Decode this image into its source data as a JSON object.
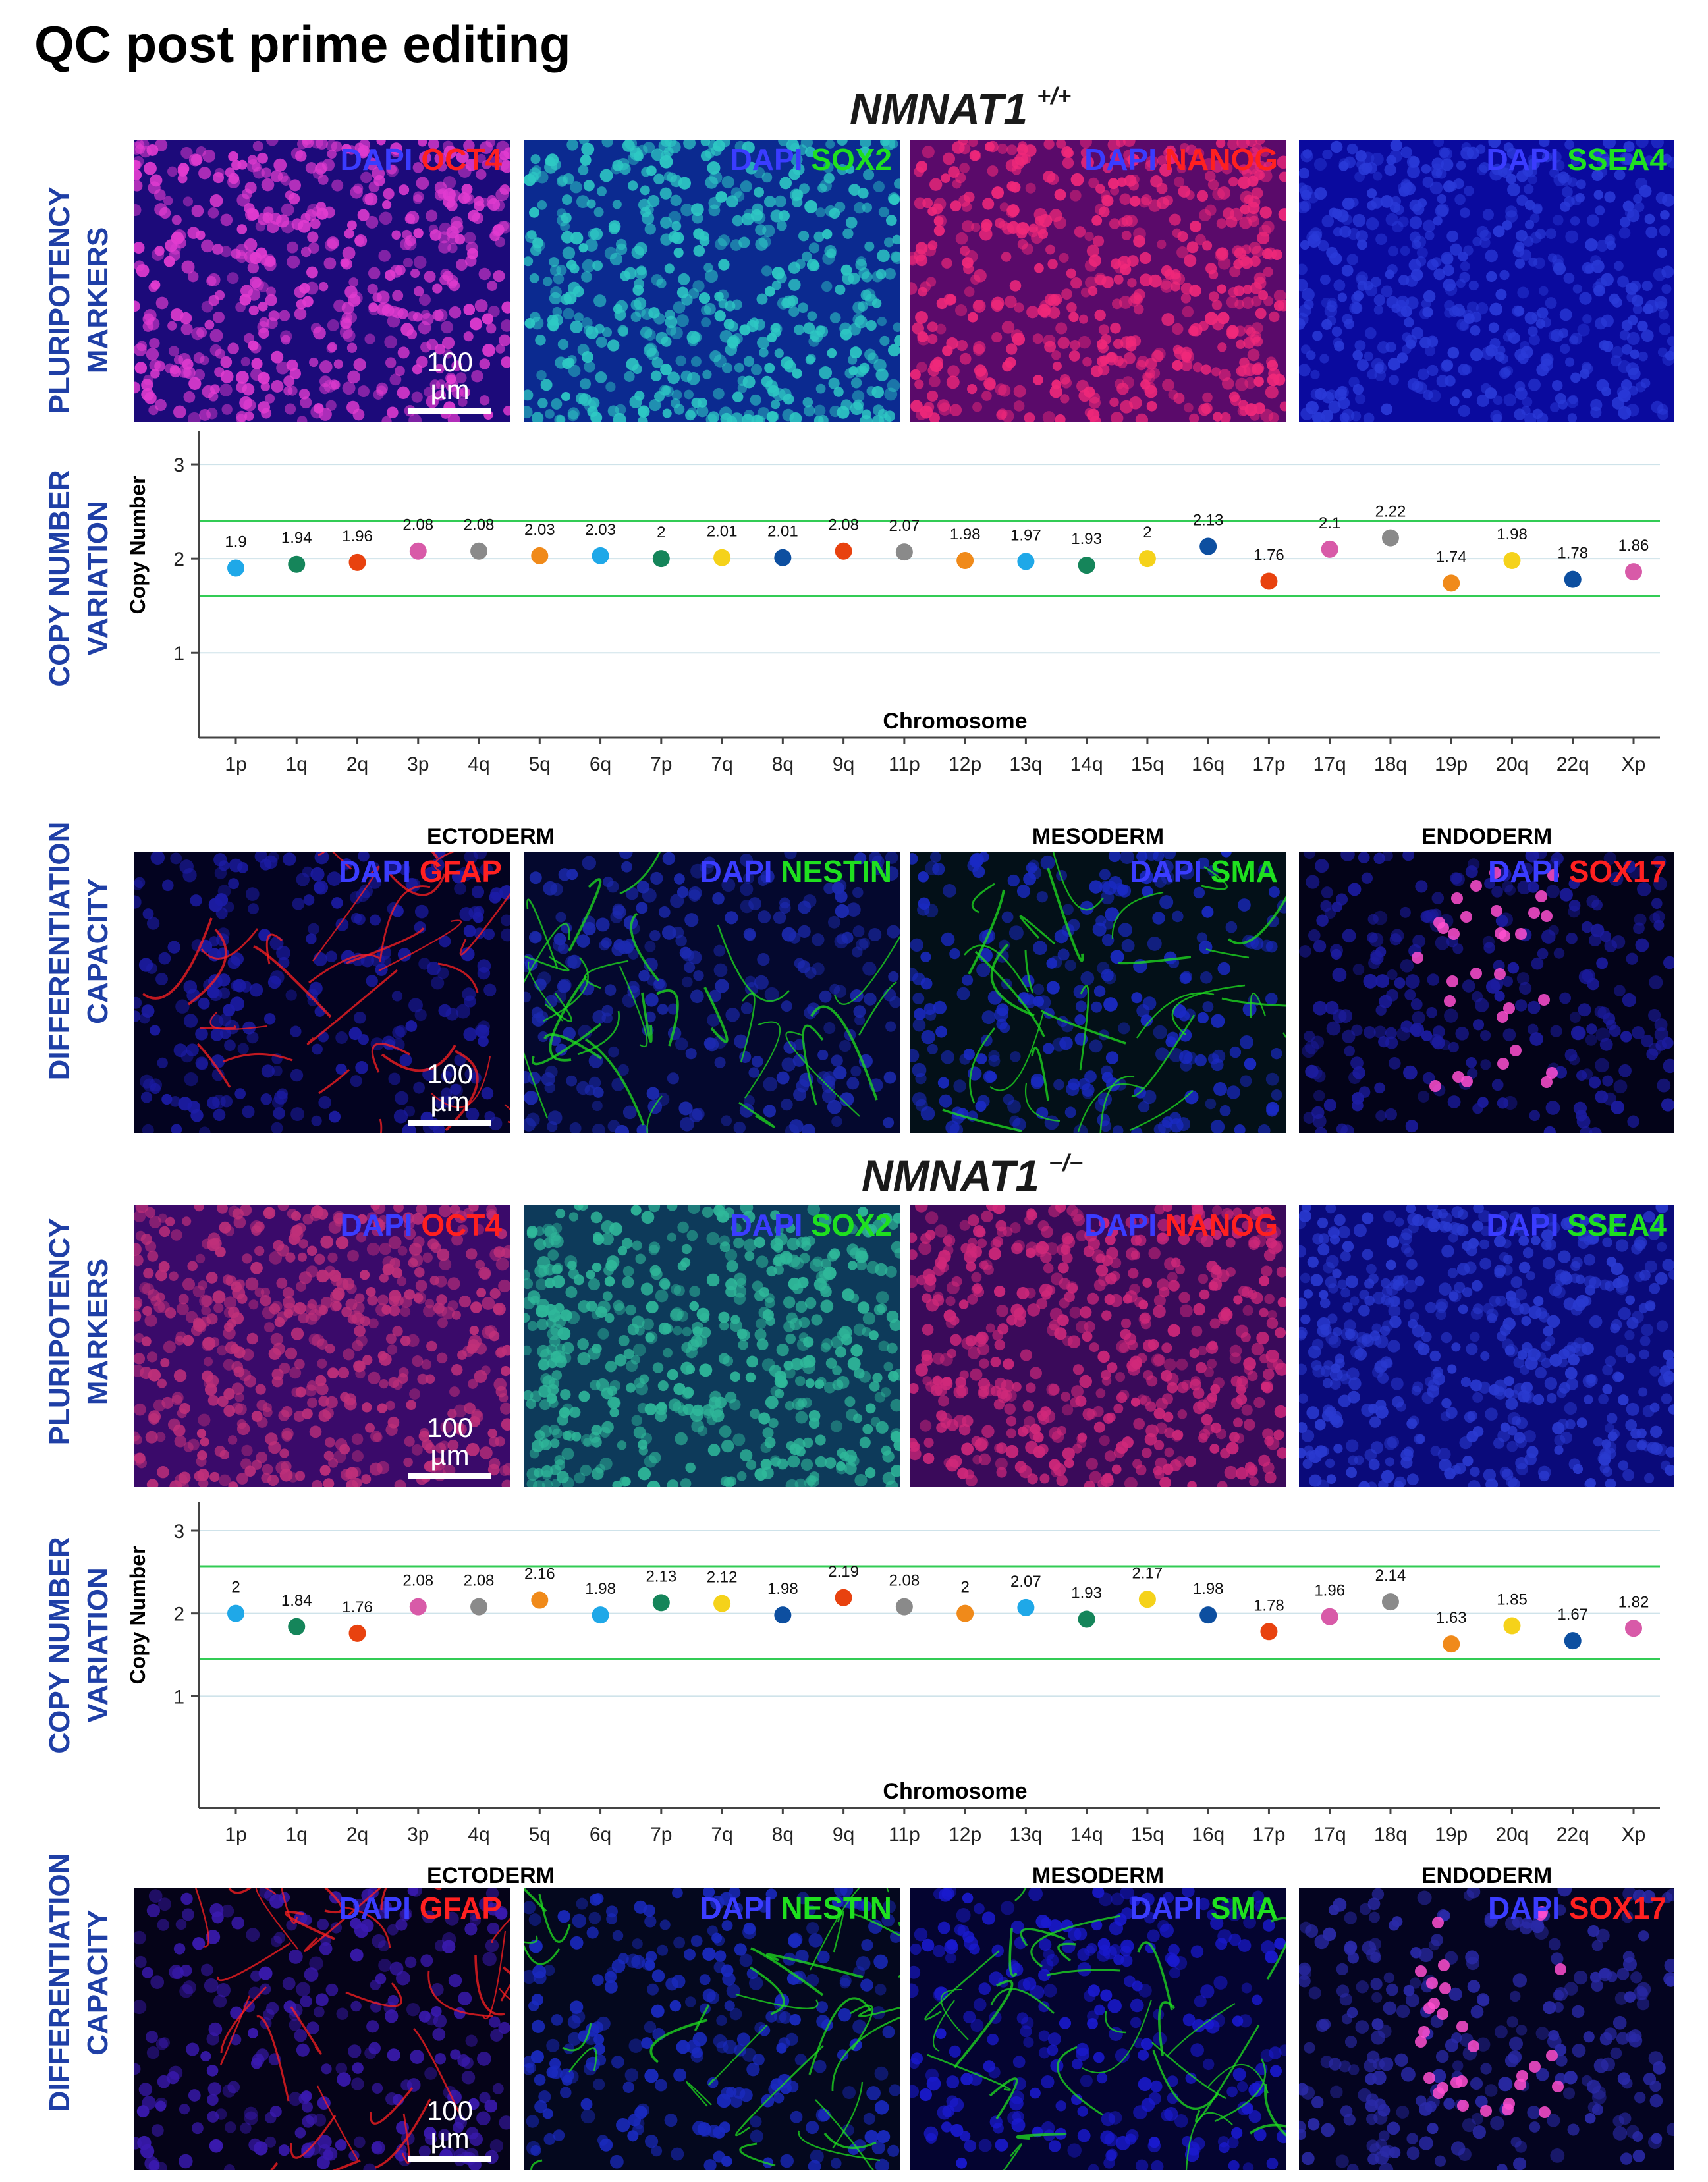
{
  "title": "QC post prime editing",
  "sections": [
    {
      "genotype": "NMNAT1",
      "genotype_sup": "+/+",
      "pluripotency": {
        "row_label": [
          "PLURIPOTENCY",
          "MARKERS"
        ],
        "panels": [
          {
            "dapi": "DAPI",
            "marker": "OCT4",
            "marker_color": "#ff2020",
            "bg": "#1c0a7a",
            "nuclei": "#e23bd0",
            "scale": "100 µm"
          },
          {
            "dapi": "DAPI",
            "marker": "SOX2",
            "marker_color": "#1fe01f",
            "bg": "#0b2a90",
            "nuclei": "#2ec9c4",
            "scale": ""
          },
          {
            "dapi": "DAPI",
            "marker": "NANOG",
            "marker_color": "#ff2020",
            "bg": "#5a0a6a",
            "nuclei": "#f0287a",
            "scale": ""
          },
          {
            "dapi": "DAPI",
            "marker": "SSEA4",
            "marker_color": "#1fe01f",
            "bg": "#0a0a9e",
            "nuclei": "#2a3ad8",
            "scale": ""
          }
        ]
      },
      "cnv": {
        "row_label": [
          "COPY NUMBER",
          "VARIATION"
        ],
        "chart_data": {
          "type": "scatter",
          "categories": [
            "1p",
            "1q",
            "2q",
            "3p",
            "4q",
            "5q",
            "6q",
            "7p",
            "7q",
            "8q",
            "9q",
            "11p",
            "12p",
            "13q",
            "14q",
            "15q",
            "16q",
            "17p",
            "17q",
            "18q",
            "19p",
            "20q",
            "22q",
            "Xp"
          ],
          "values": [
            1.9,
            1.94,
            1.96,
            2.08,
            2.08,
            2.03,
            2.03,
            2,
            2.01,
            2.01,
            2.08,
            2.07,
            1.98,
            1.97,
            1.93,
            2,
            2.13,
            1.76,
            2.1,
            2.22,
            1.74,
            1.98,
            1.78,
            1.86
          ],
          "labels": [
            "1.9",
            "1.94",
            "1.96",
            "2.08",
            "2.08",
            "2.03",
            "2.03",
            "2",
            "2.01",
            "2.01",
            "2.08",
            "2.07",
            "1.98",
            "1.97",
            "1.93",
            "2",
            "2.13",
            "1.76",
            "2.1",
            "2.22",
            "1.74",
            "1.98",
            "1.78",
            "1.86"
          ],
          "xlabel": "Chromosome",
          "ylabel": "Copy Number",
          "yticks": [
            "1",
            "2",
            "3"
          ],
          "ylim": [
            0.1,
            3.35
          ],
          "threshold_lines": [
            2.4,
            1.6
          ],
          "gridlines": [
            1,
            2,
            3
          ]
        }
      },
      "differentiation": {
        "row_label": [
          "DIFFERENTIATION",
          "CAPACITY"
        ],
        "germ_layers": [
          "ECTODERM",
          "MESODERM",
          "ENDODERM"
        ],
        "panels": [
          {
            "dapi": "DAPI",
            "marker": "GFAP",
            "marker_color": "#ff2020",
            "bg": "#030320",
            "nuclei": "#1c1ca6",
            "scale": "100 µm"
          },
          {
            "dapi": "DAPI",
            "marker": "NESTIN",
            "marker_color": "#1fe01f",
            "bg": "#04082e",
            "nuclei": "#1c2ab0",
            "scale": ""
          },
          {
            "dapi": "DAPI",
            "marker": "SMA",
            "marker_color": "#1fe01f",
            "bg": "#031018",
            "nuclei": "#1a2ac4",
            "scale": ""
          },
          {
            "dapi": "DAPI",
            "marker": "SOX17",
            "marker_color": "#ff2020",
            "bg": "#030318",
            "nuclei": "#1c1ca0",
            "scale": ""
          }
        ]
      }
    },
    {
      "genotype": "NMNAT1",
      "genotype_sup": "−/−",
      "pluripotency": {
        "row_label": [
          "PLURIPOTENCY",
          "MARKERS"
        ],
        "panels": [
          {
            "dapi": "DAPI",
            "marker": "OCT4",
            "marker_color": "#ff2020",
            "bg": "#3a0a6a",
            "nuclei": "#c0307a",
            "scale": "100 µm"
          },
          {
            "dapi": "DAPI",
            "marker": "SOX2",
            "marker_color": "#1fe01f",
            "bg": "#0d3a5a",
            "nuclei": "#2fb89a",
            "scale": ""
          },
          {
            "dapi": "DAPI",
            "marker": "NANOG",
            "marker_color": "#ff2020",
            "bg": "#3a0a5a",
            "nuclei": "#d0287a",
            "scale": ""
          },
          {
            "dapi": "DAPI",
            "marker": "SSEA4",
            "marker_color": "#1fe01f",
            "bg": "#0a0a7a",
            "nuclei": "#2a3ad0",
            "scale": ""
          }
        ]
      },
      "cnv": {
        "row_label": [
          "COPY NUMBER",
          "VARIATION"
        ],
        "chart_data": {
          "type": "scatter",
          "categories": [
            "1p",
            "1q",
            "2q",
            "3p",
            "4q",
            "5q",
            "6q",
            "7p",
            "7q",
            "8q",
            "9q",
            "11p",
            "12p",
            "13q",
            "14q",
            "15q",
            "16q",
            "17p",
            "17q",
            "18q",
            "19p",
            "20q",
            "22q",
            "Xp"
          ],
          "values": [
            2,
            1.84,
            1.76,
            2.08,
            2.08,
            2.16,
            1.98,
            2.13,
            2.12,
            1.98,
            2.19,
            2.08,
            2,
            2.07,
            1.93,
            2.17,
            1.98,
            1.78,
            1.96,
            2.14,
            1.63,
            1.85,
            1.67,
            1.82
          ],
          "labels": [
            "2",
            "1.84",
            "1.76",
            "2.08",
            "2.08",
            "2.16",
            "1.98",
            "2.13",
            "2.12",
            "1.98",
            "2.19",
            "2.08",
            "2",
            "2.07",
            "1.93",
            "2.17",
            "1.98",
            "1.78",
            "1.96",
            "2.14",
            "1.63",
            "1.85",
            "1.67",
            "1.82"
          ],
          "xlabel": "Chromosome",
          "ylabel": "Copy Number",
          "yticks": [
            "1",
            "2",
            "3"
          ],
          "ylim": [
            -0.35,
            3.35
          ],
          "threshold_lines": [
            2.57,
            1.45
          ],
          "gridlines": [
            1,
            2,
            3
          ]
        }
      },
      "differentiation": {
        "row_label": [
          "DIFFERENTIATION",
          "CAPACITY"
        ],
        "germ_layers": [
          "ECTODERM",
          "MESODERM",
          "ENDODERM"
        ],
        "panels": [
          {
            "dapi": "DAPI",
            "marker": "GFAP",
            "marker_color": "#ff2020",
            "bg": "#050318",
            "nuclei": "#3a1ab0",
            "scale": "100 µm"
          },
          {
            "dapi": "DAPI",
            "marker": "NESTIN",
            "marker_color": "#1fe01f",
            "bg": "#04081e",
            "nuclei": "#1a2ac0",
            "scale": ""
          },
          {
            "dapi": "DAPI",
            "marker": "SMA",
            "marker_color": "#1fe01f",
            "bg": "#040430",
            "nuclei": "#1a1ad0",
            "scale": ""
          },
          {
            "dapi": "DAPI",
            "marker": "SOX17",
            "marker_color": "#ff2020",
            "bg": "#040420",
            "nuclei": "#2a2aa8",
            "scale": ""
          }
        ]
      }
    }
  ],
  "dot_colors": [
    "#1fa8e8",
    "#15855a",
    "#e8420f",
    "#d85aa8",
    "#8a8a8a",
    "#f08a1a",
    "#1fa8e8",
    "#15855a",
    "#f5d21a",
    "#0d4fa0",
    "#e8420f",
    "#8a8a8a",
    "#f08a1a",
    "#1fa8e8",
    "#15855a",
    "#f5d21a",
    "#0d4fa0",
    "#e8420f",
    "#d85aa8",
    "#8a8a8a",
    "#f08a1a",
    "#f5d21a",
    "#0d4fa0",
    "#d85aa8"
  ]
}
